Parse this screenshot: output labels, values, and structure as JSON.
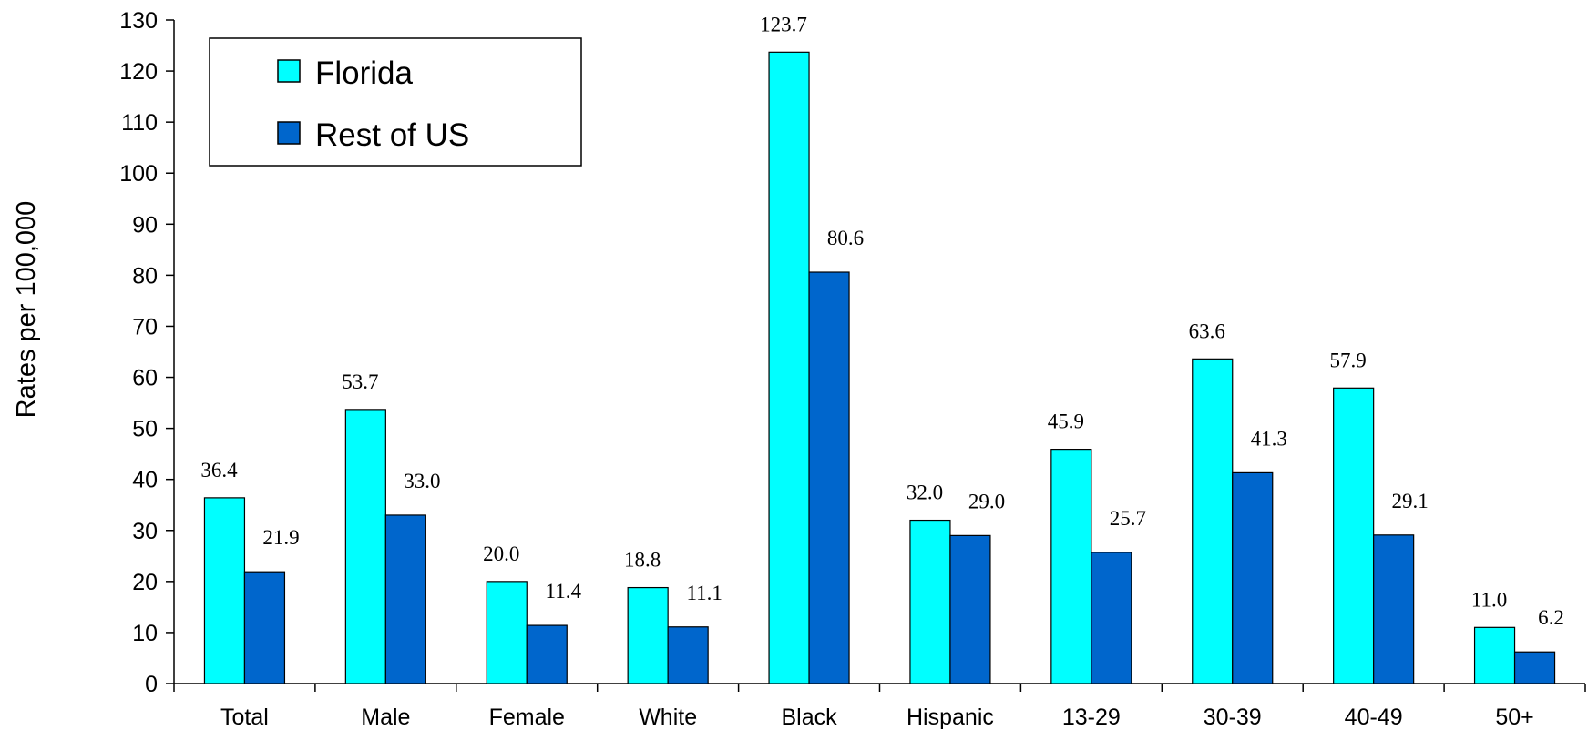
{
  "chart_data": {
    "type": "bar",
    "title": "",
    "xlabel": "",
    "ylabel": "Rates per 100,000",
    "ylim": [
      0,
      130
    ],
    "ytick_step": 10,
    "grid": false,
    "legend_position": "top-left",
    "categories": [
      "Total",
      "Male",
      "Female",
      "White",
      "Black",
      "Hispanic",
      "13-29",
      "30-39",
      "40-49",
      "50+"
    ],
    "series": [
      {
        "name": "Florida",
        "color": "#00FFFF",
        "values": [
          36.4,
          53.7,
          20.0,
          18.8,
          123.7,
          32.0,
          45.9,
          63.6,
          57.9,
          11.0
        ],
        "labels": [
          "36.4",
          "53.7",
          "20.0",
          "18.8",
          "123.7",
          "32.0",
          "45.9",
          "63.6",
          "57.9",
          "11.0"
        ]
      },
      {
        "name": "Rest of US",
        "color": "#0066CC",
        "values": [
          21.9,
          33.0,
          11.4,
          11.1,
          80.6,
          29.0,
          25.7,
          41.3,
          29.1,
          6.2
        ],
        "labels": [
          "21.9",
          "33.0",
          "11.4",
          "11.1",
          "80.6",
          "29.0",
          "25.7",
          "41.3",
          "29.1",
          "6.2"
        ]
      }
    ]
  }
}
